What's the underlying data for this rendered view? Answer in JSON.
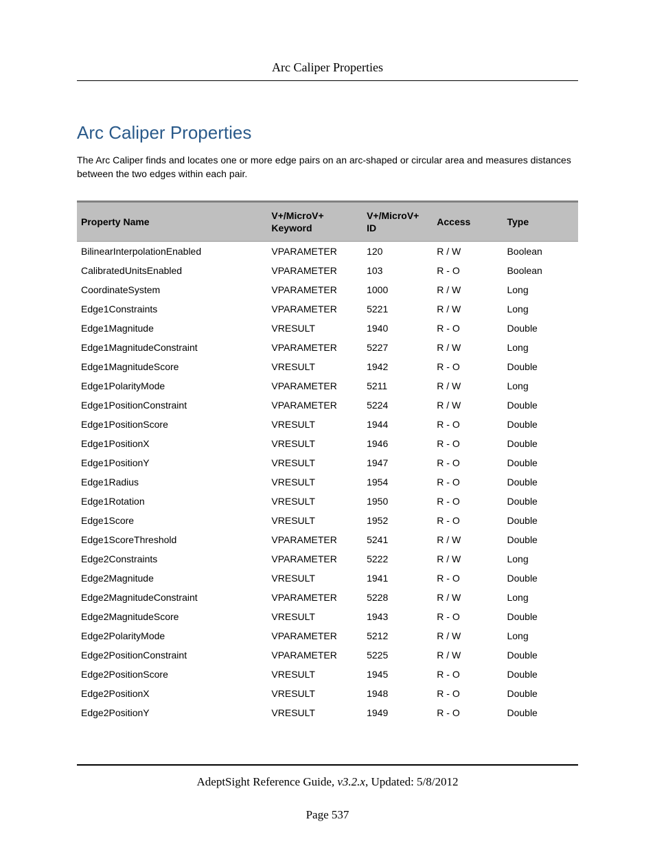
{
  "header": {
    "running_title": "Arc Caliper Properties"
  },
  "section": {
    "title": "Arc Caliper Properties",
    "description": "The Arc Caliper finds and locates one or more edge pairs on an arc-shaped or circular area and measures distances between the two edges within each pair."
  },
  "table": {
    "columns": {
      "name": "Property Name",
      "keyword_l1": "V+/MicroV+",
      "keyword_l2": "Keyword",
      "id_l1": "V+/MicroV+",
      "id_l2": "ID",
      "access": "Access",
      "type": "Type"
    },
    "rows": [
      {
        "name": "BilinearInterpolationEnabled",
        "keyword": "VPARAMETER",
        "id": "120",
        "access": "R / W",
        "type": "Boolean"
      },
      {
        "name": "CalibratedUnitsEnabled",
        "keyword": "VPARAMETER",
        "id": "103",
        "access": "R - O",
        "type": "Boolean"
      },
      {
        "name": "CoordinateSystem",
        "keyword": "VPARAMETER",
        "id": "1000",
        "access": "R / W",
        "type": "Long"
      },
      {
        "name": "Edge1Constraints",
        "keyword": "VPARAMETER",
        "id": "5221",
        "access": "R / W",
        "type": "Long"
      },
      {
        "name": "Edge1Magnitude",
        "keyword": "VRESULT",
        "id": "1940",
        "access": "R - O",
        "type": "Double"
      },
      {
        "name": "Edge1MagnitudeConstraint",
        "keyword": "VPARAMETER",
        "id": "5227",
        "access": "R / W",
        "type": "Long"
      },
      {
        "name": "Edge1MagnitudeScore",
        "keyword": "VRESULT",
        "id": "1942",
        "access": "R - O",
        "type": "Double"
      },
      {
        "name": "Edge1PolarityMode",
        "keyword": "VPARAMETER",
        "id": "5211",
        "access": "R / W",
        "type": "Long"
      },
      {
        "name": "Edge1PositionConstraint",
        "keyword": "VPARAMETER",
        "id": "5224",
        "access": "R / W",
        "type": "Double"
      },
      {
        "name": "Edge1PositionScore",
        "keyword": "VRESULT",
        "id": "1944",
        "access": "R - O",
        "type": "Double"
      },
      {
        "name": "Edge1PositionX",
        "keyword": "VRESULT",
        "id": "1946",
        "access": "R - O",
        "type": "Double"
      },
      {
        "name": "Edge1PositionY",
        "keyword": "VRESULT",
        "id": "1947",
        "access": "R - O",
        "type": "Double"
      },
      {
        "name": "Edge1Radius",
        "keyword": "VRESULT",
        "id": "1954",
        "access": "R - O",
        "type": "Double"
      },
      {
        "name": "Edge1Rotation",
        "keyword": "VRESULT",
        "id": "1950",
        "access": "R - O",
        "type": "Double"
      },
      {
        "name": "Edge1Score",
        "keyword": "VRESULT",
        "id": "1952",
        "access": "R - O",
        "type": "Double"
      },
      {
        "name": "Edge1ScoreThreshold",
        "keyword": "VPARAMETER",
        "id": "5241",
        "access": "R / W",
        "type": "Double"
      },
      {
        "name": "Edge2Constraints",
        "keyword": "VPARAMETER",
        "id": "5222",
        "access": "R / W",
        "type": "Long"
      },
      {
        "name": "Edge2Magnitude",
        "keyword": "VRESULT",
        "id": "1941",
        "access": "R - O",
        "type": "Double"
      },
      {
        "name": "Edge2MagnitudeConstraint",
        "keyword": "VPARAMETER",
        "id": "5228",
        "access": "R / W",
        "type": "Long"
      },
      {
        "name": "Edge2MagnitudeScore",
        "keyword": "VRESULT",
        "id": "1943",
        "access": "R - O",
        "type": "Double"
      },
      {
        "name": "Edge2PolarityMode",
        "keyword": "VPARAMETER",
        "id": "5212",
        "access": "R / W",
        "type": "Long"
      },
      {
        "name": "Edge2PositionConstraint",
        "keyword": "VPARAMETER",
        "id": "5225",
        "access": "R / W",
        "type": "Double"
      },
      {
        "name": "Edge2PositionScore",
        "keyword": "VRESULT",
        "id": "1945",
        "access": "R - O",
        "type": "Double"
      },
      {
        "name": "Edge2PositionX",
        "keyword": "VRESULT",
        "id": "1948",
        "access": "R - O",
        "type": "Double"
      },
      {
        "name": "Edge2PositionY",
        "keyword": "VRESULT",
        "id": "1949",
        "access": "R - O",
        "type": "Double"
      }
    ]
  },
  "footer": {
    "doc_title": "AdeptSight Reference Guide",
    "version": ", v3.2.x",
    "updated": ", Updated: 5/8/2012",
    "page_label": "Page 537"
  }
}
